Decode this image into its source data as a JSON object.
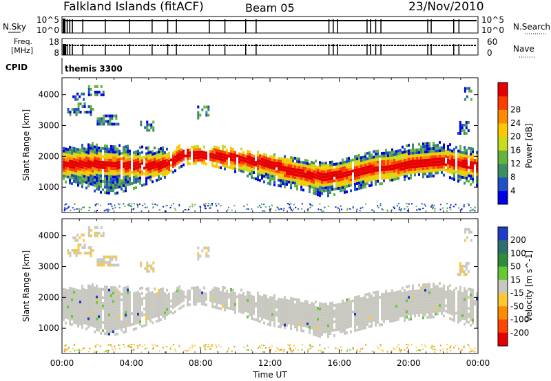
{
  "header": {
    "station": "Falkland Islands (fitACF)",
    "beam": "Beam 05",
    "date": "23/Nov/2010"
  },
  "top_panels": {
    "nsky_label": "N.Sky",
    "nsky_ticks": [
      "10^5",
      "10^0"
    ],
    "nsearch_label": "N.Search",
    "nsearch_ticks": [
      "10^5",
      "10^0"
    ],
    "freq_label_1": "Freq.",
    "freq_label_2": "[MHz]",
    "freq_ticks": [
      "18",
      "8"
    ],
    "nave_label": "Nave",
    "nave_ticks": [
      "60",
      "0"
    ],
    "cpid_label": "CPID",
    "cpid_value": "themis 3300"
  },
  "chart_data": [
    {
      "type": "heatmap",
      "title": "",
      "xlabel": "Time UT",
      "ylabel": "Slant Range [km]",
      "xlim": [
        0,
        24
      ],
      "ylim": [
        180,
        4550
      ],
      "x_tick_labels": [
        "00:00",
        "04:00",
        "08:00",
        "12:00",
        "16:00",
        "20:00",
        "00:00"
      ],
      "y_ticks": [
        1000,
        2000,
        3000,
        4000
      ],
      "colorbar": {
        "label": "Power [dB]",
        "ticks": [
          4,
          8,
          12,
          16,
          20,
          24,
          28
        ],
        "colors": [
          "#0000e6",
          "#1e50c8",
          "#3c8c64",
          "#64b43c",
          "#c8dc1e",
          "#ffc800",
          "#ff8c00",
          "#ff3c00",
          "#e60000"
        ]
      },
      "echo_band_km": {
        "times_h": [
          0,
          1,
          2,
          3,
          4,
          5,
          6,
          7,
          8,
          9,
          10,
          11,
          12,
          13,
          14,
          15,
          16,
          17,
          18,
          19,
          20,
          21,
          22,
          23,
          24
        ],
        "lower": [
          1150,
          1000,
          800,
          750,
          900,
          1100,
          1300,
          1700,
          1750,
          1600,
          1450,
          1250,
          1050,
          950,
          850,
          650,
          750,
          900,
          1050,
          1100,
          1250,
          1300,
          1350,
          1100,
          1000
        ],
        "upper": [
          2300,
          2350,
          2400,
          2350,
          2300,
          2250,
          2250,
          2350,
          2300,
          2300,
          2250,
          2150,
          2100,
          2000,
          1850,
          1800,
          1900,
          2050,
          2150,
          2250,
          2350,
          2450,
          2400,
          2300,
          2250
        ],
        "core": [
          1700,
          1700,
          1700,
          1700,
          1650,
          1650,
          1700,
          2050,
          2000,
          1950,
          1900,
          1800,
          1700,
          1500,
          1350,
          1300,
          1350,
          1450,
          1550,
          1600,
          1700,
          1750,
          1800,
          1700,
          1650
        ]
      }
    },
    {
      "type": "heatmap",
      "title": "",
      "xlabel": "Time UT",
      "ylabel": "Slant Range [km]",
      "xlim": [
        0,
        24
      ],
      "ylim": [
        180,
        4550
      ],
      "x_tick_labels": [
        "00:00",
        "04:00",
        "08:00",
        "12:00",
        "16:00",
        "20:00",
        "00:00"
      ],
      "y_ticks": [
        1000,
        2000,
        3000,
        4000
      ],
      "colorbar": {
        "label": "Velocity [m s^-1]",
        "ticks": [
          200,
          100,
          50,
          15,
          -15,
          -50,
          -100,
          -200
        ],
        "colors": [
          "#1e3cc8",
          "#2e6e6e",
          "#2e8b3c",
          "#64c832",
          "#c8c8c0",
          "#ffc832",
          "#ff8c00",
          "#ff4600",
          "#e60000"
        ]
      },
      "ground_scatter_band_km": {
        "times_h": [
          0,
          1,
          2,
          3,
          4,
          5,
          6,
          7,
          8,
          9,
          10,
          11,
          12,
          13,
          14,
          15,
          16,
          17,
          18,
          19,
          20,
          21,
          22,
          23,
          24
        ],
        "lower": [
          1150,
          1000,
          800,
          750,
          900,
          1100,
          1300,
          1700,
          1750,
          1600,
          1450,
          1250,
          1050,
          950,
          850,
          650,
          750,
          900,
          1050,
          1100,
          1250,
          1300,
          1350,
          1100,
          1000
        ],
        "upper": [
          2300,
          2350,
          2400,
          2350,
          2300,
          2250,
          2250,
          2350,
          2300,
          2300,
          2250,
          2150,
          2100,
          2000,
          1850,
          1800,
          1900,
          2050,
          2150,
          2250,
          2350,
          2450,
          2400,
          2300,
          2250
        ]
      }
    }
  ]
}
